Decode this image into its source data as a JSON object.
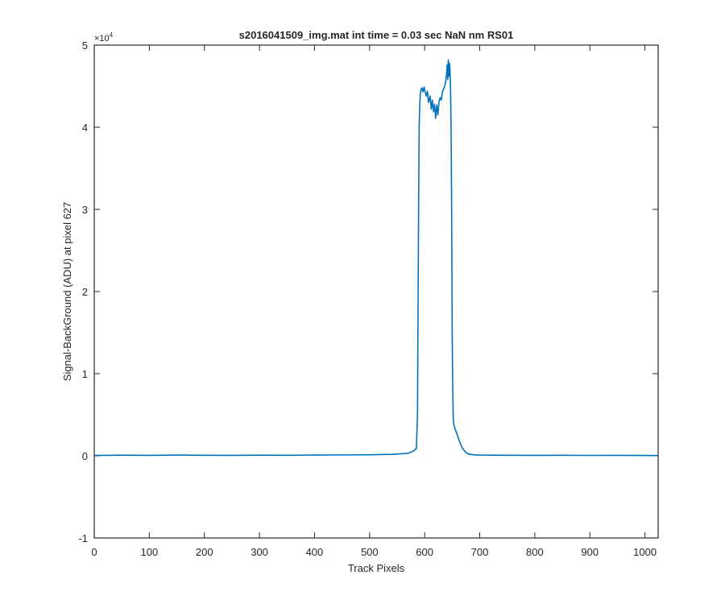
{
  "chart_data": {
    "type": "line",
    "title": "s2016041509_img.mat int time = 0.03 sec  NaN nm RS01",
    "xlabel": "Track Pixels",
    "ylabel": "Signal-BackGround (ADU) at pixel 627",
    "y_exponent_label": "×10",
    "y_exponent_power": "4",
    "xlim": [
      0,
      1024
    ],
    "ylim": [
      -10000,
      50000
    ],
    "xticks": [
      0,
      100,
      200,
      300,
      400,
      500,
      600,
      700,
      800,
      900,
      1000
    ],
    "yticks": [
      -10000,
      0,
      10000,
      20000,
      30000,
      40000,
      50000
    ],
    "xtick_labels": [
      "0",
      "100",
      "200",
      "300",
      "400",
      "500",
      "600",
      "700",
      "800",
      "900",
      "1000"
    ],
    "ytick_labels": [
      "-1",
      "0",
      "1",
      "2",
      "3",
      "4",
      "5"
    ],
    "grid": false,
    "line_color": "#0072BD",
    "series": [
      {
        "x": [
          0,
          50,
          100,
          150,
          200,
          250,
          300,
          350,
          400,
          450,
          500,
          540,
          570,
          580,
          585,
          587,
          589,
          590,
          591,
          592,
          593,
          595,
          597,
          599,
          601,
          603,
          605,
          607,
          610,
          612,
          614,
          616,
          618,
          620,
          622,
          624,
          626,
          628,
          630,
          632,
          634,
          636,
          638,
          640,
          641,
          642,
          643,
          644,
          645,
          646,
          647,
          648,
          649,
          650,
          651,
          652,
          653,
          655,
          658,
          662,
          666,
          670,
          675,
          680,
          690,
          700,
          750,
          800,
          850,
          900,
          950,
          1000,
          1024
        ],
        "y": [
          50,
          80,
          60,
          90,
          70,
          60,
          80,
          70,
          90,
          110,
          130,
          180,
          300,
          600,
          900,
          5000,
          30000,
          40000,
          42500,
          44000,
          44500,
          44800,
          44300,
          44900,
          44200,
          43800,
          44400,
          43000,
          43800,
          42200,
          43300,
          41900,
          42800,
          41100,
          42700,
          41500,
          43100,
          43600,
          43300,
          44200,
          44600,
          44900,
          45500,
          46600,
          47600,
          45800,
          48200,
          46200,
          47800,
          47000,
          44500,
          40000,
          30000,
          15000,
          8000,
          4500,
          3800,
          3300,
          2800,
          2000,
          1300,
          800,
          400,
          200,
          120,
          90,
          70,
          60,
          70,
          50,
          60,
          40,
          30
        ]
      }
    ]
  }
}
